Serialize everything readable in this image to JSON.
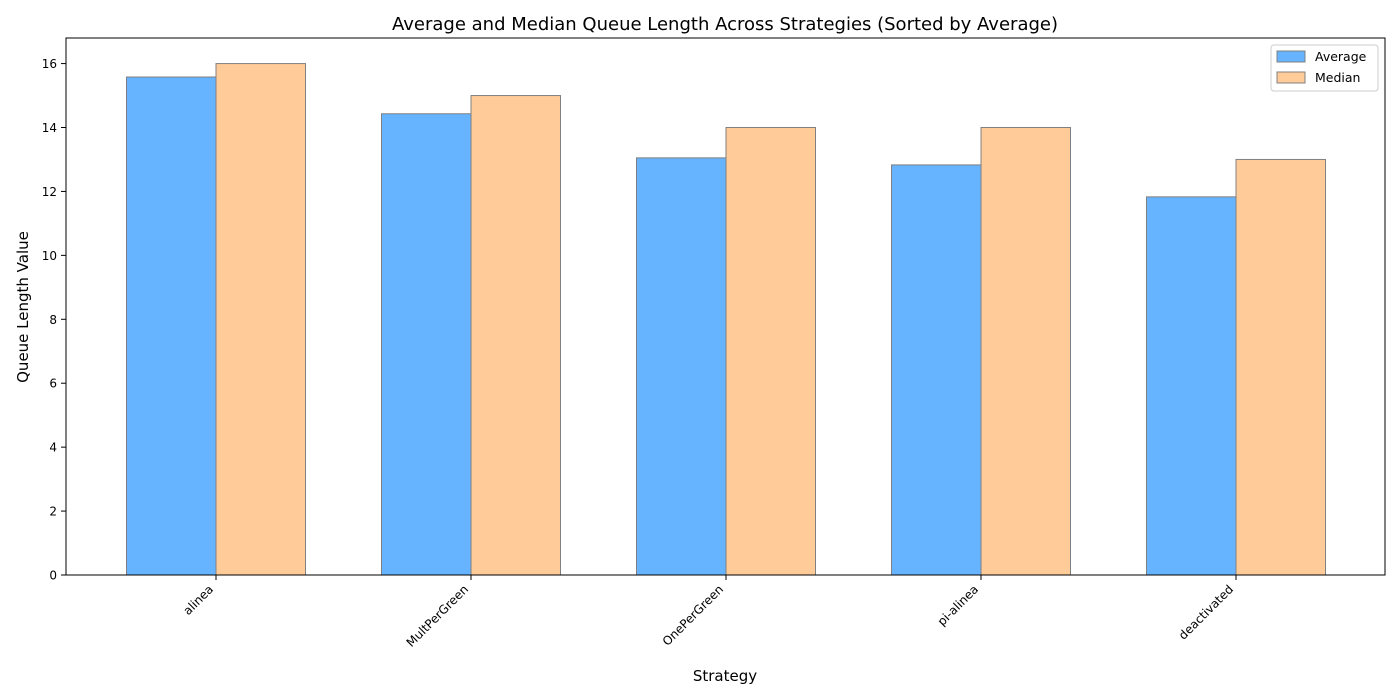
{
  "chart_data": {
    "type": "bar",
    "title": "Average and Median Queue Length Across Strategies (Sorted by Average)",
    "xlabel": "Strategy",
    "ylabel": "Queue Length Value",
    "categories": [
      "alinea",
      "MultPerGreen",
      "OnePerGreen",
      "pi-alinea",
      "deactivated"
    ],
    "series": [
      {
        "name": "Average",
        "values": [
          15.58,
          14.43,
          13.05,
          12.83,
          11.83
        ],
        "color": "#66b3ff"
      },
      {
        "name": "Median",
        "values": [
          16,
          15,
          14,
          14,
          13
        ],
        "color": "#ffcc99"
      }
    ],
    "ylim": [
      0,
      16.8
    ],
    "yticks": [
      0,
      2,
      4,
      6,
      8,
      10,
      12,
      14,
      16
    ],
    "grid": false,
    "legend_position": "top-right",
    "bar_edge_color": "#808080"
  }
}
